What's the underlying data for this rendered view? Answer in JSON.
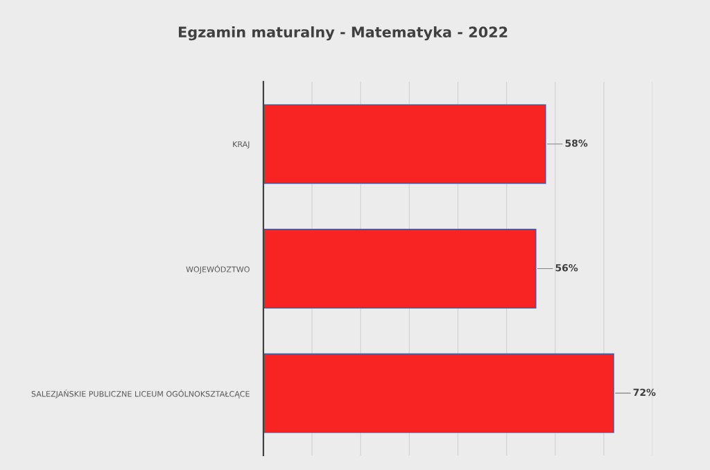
{
  "chart_data": {
    "type": "bar",
    "orientation": "horizontal",
    "title": "Egzamin maturalny - Matematyka - 2022",
    "categories": [
      "KRAJ",
      "WOJEWÓDZTWO",
      "SALEZJAŃSKIE PUBLICZNE LICEUM OGÓLNOKSZTAŁCĄCE"
    ],
    "values": [
      58,
      56,
      72
    ],
    "color": "#f82424",
    "value_labels": [
      "58%",
      "56%",
      "72%"
    ],
    "xlim": [
      0,
      80
    ],
    "xticks": [
      {
        "value": 0,
        "label": null
      },
      {
        "value": 10,
        "label": null
      },
      {
        "value": 20,
        "label": null
      },
      {
        "value": 30,
        "label": null
      },
      {
        "value": 40,
        "label": null
      },
      {
        "value": 50,
        "label": null
      },
      {
        "value": 60,
        "label": null
      },
      {
        "value": 70,
        "label": null
      },
      {
        "value": 80,
        "label": null
      }
    ],
    "grid": "x",
    "tick_labels": "y"
  }
}
